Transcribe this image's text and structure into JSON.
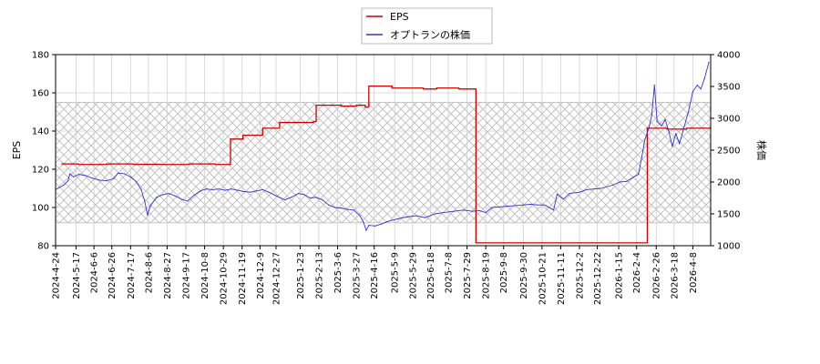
{
  "chart_data": {
    "type": "line",
    "legend": {
      "placement": "top-center",
      "entries": [
        {
          "label": "EPS",
          "color": "#cc0000"
        },
        {
          "label": "オプトランの株価",
          "color": "#3333cc"
        }
      ]
    },
    "ylabel_left": "EPS",
    "ylabel_right": "株価",
    "ylim_left": [
      80,
      180
    ],
    "yticks_left": [
      80,
      100,
      120,
      140,
      160,
      180
    ],
    "ylim_right": [
      1000,
      4000
    ],
    "yticks_right": [
      1000,
      1500,
      2000,
      2500,
      3000,
      3500,
      4000
    ],
    "grid": true,
    "hatched_band": {
      "from": 92,
      "to": 155
    },
    "x_start": "2024-04-24",
    "x_end": "2026-04-28",
    "x_tick_labels": [
      "2024-4-24",
      "2024-5-17",
      "2024-6-6",
      "2024-6-26",
      "2024-7-17",
      "2024-8-6",
      "2024-8-27",
      "2024-9-17",
      "2024-10-8",
      "2024-10-29",
      "2024-11-19",
      "2024-12-9",
      "2024-12-27",
      "2025-1-23",
      "2025-2-13",
      "2025-3-6",
      "2025-3-27",
      "2025-4-16",
      "2025-5-9",
      "2025-5-29",
      "2025-6-18",
      "2025-7-8",
      "2025-7-29",
      "2025-8-19",
      "2025-9-8",
      "2025-9-30",
      "2025-10-21",
      "2025-11-11",
      "2025-12-2",
      "2025-12-22",
      "2026-1-15",
      "2026-2-4",
      "2026-2-26",
      "2026-3-18",
      "2026-4-8"
    ],
    "series": [
      {
        "name": "EPS",
        "axis": "left",
        "color": "#cc0000",
        "step": true,
        "points": [
          [
            "2024-05-01",
            122.8
          ],
          [
            "2024-05-20",
            122.5
          ],
          [
            "2024-06-20",
            122.8
          ],
          [
            "2024-07-20",
            122.6
          ],
          [
            "2024-08-20",
            122.5
          ],
          [
            "2024-09-20",
            122.8
          ],
          [
            "2024-10-20",
            122.5
          ],
          [
            "2024-11-05",
            122.5
          ],
          [
            "2024-11-06",
            135.8
          ],
          [
            "2024-11-20",
            137.8
          ],
          [
            "2024-12-09",
            137.8
          ],
          [
            "2024-12-12",
            141.5
          ],
          [
            "2024-12-27",
            141.5
          ],
          [
            "2024-12-31",
            144.5
          ],
          [
            "2025-02-07",
            145.0
          ],
          [
            "2025-02-10",
            153.5
          ],
          [
            "2025-03-10",
            153.0
          ],
          [
            "2025-03-27",
            153.5
          ],
          [
            "2025-04-06",
            152.5
          ],
          [
            "2025-04-10",
            163.5
          ],
          [
            "2025-05-06",
            162.5
          ],
          [
            "2025-06-10",
            162.0
          ],
          [
            "2025-06-25",
            162.5
          ],
          [
            "2025-07-20",
            162.0
          ],
          [
            "2025-08-07",
            162.0
          ],
          [
            "2025-08-08",
            81.5
          ],
          [
            "2025-10-01",
            81.5
          ],
          [
            "2025-12-01",
            81.5
          ],
          [
            "2026-02-08",
            81.5
          ],
          [
            "2026-02-16",
            141.5
          ],
          [
            "2026-03-10",
            141.0
          ],
          [
            "2026-04-01",
            141.5
          ],
          [
            "2026-04-28",
            141.0
          ]
        ]
      },
      {
        "name": "オプトランの株価",
        "axis": "right",
        "color": "#3333cc",
        "step": false,
        "points": [
          [
            "2024-04-24",
            1880
          ],
          [
            "2024-05-03",
            1950
          ],
          [
            "2024-05-08",
            2020
          ],
          [
            "2024-05-10",
            2130
          ],
          [
            "2024-05-14",
            2080
          ],
          [
            "2024-05-20",
            2120
          ],
          [
            "2024-05-28",
            2100
          ],
          [
            "2024-06-04",
            2060
          ],
          [
            "2024-06-12",
            2030
          ],
          [
            "2024-06-20",
            2020
          ],
          [
            "2024-06-28",
            2050
          ],
          [
            "2024-07-03",
            2140
          ],
          [
            "2024-07-10",
            2130
          ],
          [
            "2024-07-17",
            2080
          ],
          [
            "2024-07-23",
            2010
          ],
          [
            "2024-07-29",
            1880
          ],
          [
            "2024-08-02",
            1690
          ],
          [
            "2024-08-05",
            1480
          ],
          [
            "2024-08-08",
            1620
          ],
          [
            "2024-08-15",
            1760
          ],
          [
            "2024-08-22",
            1800
          ],
          [
            "2024-08-29",
            1820
          ],
          [
            "2024-09-05",
            1780
          ],
          [
            "2024-09-12",
            1730
          ],
          [
            "2024-09-19",
            1700
          ],
          [
            "2024-09-26",
            1790
          ],
          [
            "2024-10-03",
            1860
          ],
          [
            "2024-10-10",
            1890
          ],
          [
            "2024-10-17",
            1880
          ],
          [
            "2024-10-24",
            1890
          ],
          [
            "2024-10-31",
            1870
          ],
          [
            "2024-11-07",
            1890
          ],
          [
            "2024-11-14",
            1870
          ],
          [
            "2024-11-21",
            1850
          ],
          [
            "2024-11-28",
            1840
          ],
          [
            "2024-12-05",
            1860
          ],
          [
            "2024-12-12",
            1880
          ],
          [
            "2024-12-19",
            1840
          ],
          [
            "2024-12-26",
            1790
          ],
          [
            "2025-01-06",
            1720
          ],
          [
            "2025-01-13",
            1760
          ],
          [
            "2025-01-21",
            1820
          ],
          [
            "2025-01-28",
            1800
          ],
          [
            "2025-02-03",
            1750
          ],
          [
            "2025-02-10",
            1760
          ],
          [
            "2025-02-17",
            1720
          ],
          [
            "2025-02-24",
            1640
          ],
          [
            "2025-03-03",
            1600
          ],
          [
            "2025-03-10",
            1590
          ],
          [
            "2025-03-17",
            1570
          ],
          [
            "2025-03-24",
            1560
          ],
          [
            "2025-03-31",
            1470
          ],
          [
            "2025-04-04",
            1370
          ],
          [
            "2025-04-07",
            1240
          ],
          [
            "2025-04-10",
            1320
          ],
          [
            "2025-04-17",
            1310
          ],
          [
            "2025-04-24",
            1340
          ],
          [
            "2025-05-01",
            1380
          ],
          [
            "2025-05-12",
            1420
          ],
          [
            "2025-05-22",
            1450
          ],
          [
            "2025-06-02",
            1470
          ],
          [
            "2025-06-12",
            1440
          ],
          [
            "2025-06-23",
            1500
          ],
          [
            "2025-07-03",
            1520
          ],
          [
            "2025-07-14",
            1540
          ],
          [
            "2025-07-25",
            1560
          ],
          [
            "2025-08-04",
            1540
          ],
          [
            "2025-08-12",
            1550
          ],
          [
            "2025-08-19",
            1520
          ],
          [
            "2025-08-26",
            1600
          ],
          [
            "2025-09-04",
            1610
          ],
          [
            "2025-09-12",
            1620
          ],
          [
            "2025-09-22",
            1630
          ],
          [
            "2025-09-30",
            1640
          ],
          [
            "2025-10-08",
            1650
          ],
          [
            "2025-10-16",
            1640
          ],
          [
            "2025-10-24",
            1640
          ],
          [
            "2025-11-03",
            1560
          ],
          [
            "2025-11-07",
            1810
          ],
          [
            "2025-11-14",
            1730
          ],
          [
            "2025-11-21",
            1820
          ],
          [
            "2025-12-02",
            1840
          ],
          [
            "2025-12-10",
            1880
          ],
          [
            "2025-12-18",
            1890
          ],
          [
            "2025-12-26",
            1900
          ],
          [
            "2026-01-08",
            1950
          ],
          [
            "2026-01-16",
            2000
          ],
          [
            "2026-01-24",
            2010
          ],
          [
            "2026-02-01",
            2080
          ],
          [
            "2026-02-06",
            2120
          ],
          [
            "2026-02-10",
            2400
          ],
          [
            "2026-02-13",
            2650
          ],
          [
            "2026-02-18",
            2860
          ],
          [
            "2026-02-21",
            3050
          ],
          [
            "2026-02-24",
            3520
          ],
          [
            "2026-02-27",
            2950
          ],
          [
            "2026-03-04",
            2880
          ],
          [
            "2026-03-08",
            2980
          ],
          [
            "2026-03-12",
            2800
          ],
          [
            "2026-03-16",
            2560
          ],
          [
            "2026-03-20",
            2760
          ],
          [
            "2026-03-24",
            2600
          ],
          [
            "2026-03-28",
            2800
          ],
          [
            "2026-04-03",
            3100
          ],
          [
            "2026-04-08",
            3420
          ],
          [
            "2026-04-13",
            3520
          ],
          [
            "2026-04-17",
            3460
          ],
          [
            "2026-04-21",
            3620
          ],
          [
            "2026-04-26",
            3880
          ]
        ]
      }
    ]
  }
}
